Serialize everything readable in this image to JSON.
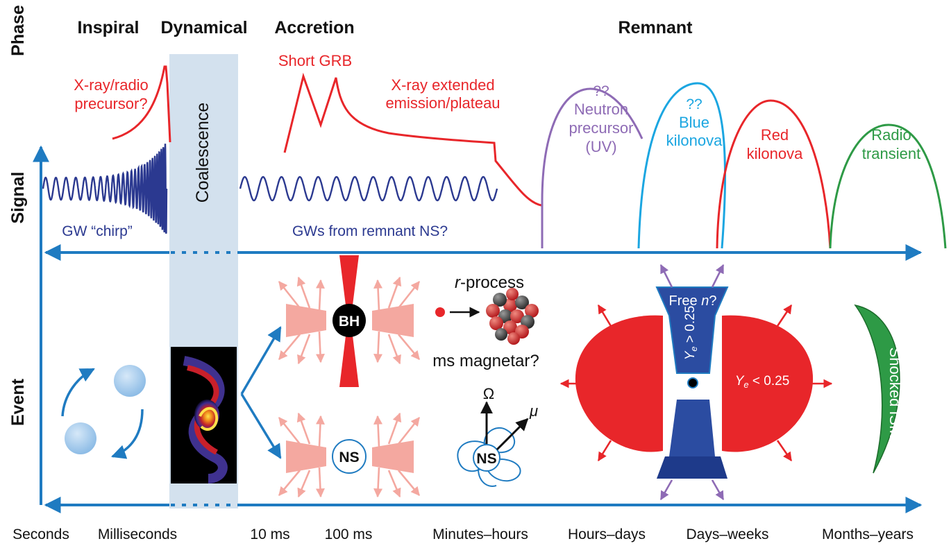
{
  "colors": {
    "axis_blue": "#1f7bc1",
    "gw_navy": "#2b3990",
    "em_red": "#e8262a",
    "purple": "#8e6bb5",
    "cyan": "#1ba6e1",
    "green": "#2e9a46",
    "coalescence_band": "#d3e1ee",
    "pink": "#f4a8a0",
    "ejecta_blue": "#2b4ca1"
  },
  "row_labels": {
    "phase": "Phase",
    "signal": "Signal",
    "event": "Event"
  },
  "phases": {
    "inspiral": "Inspiral",
    "dynamical": "Dynamical",
    "accretion": "Accretion",
    "remnant": "Remnant"
  },
  "signal": {
    "precursor_line1": "X-ray/radio",
    "precursor_line2": "precursor?",
    "coalescence": "Coalescence",
    "short_grb": "Short GRB",
    "extended_line1": "X-ray extended",
    "extended_line2": "emission/plateau",
    "chirp": "GW “chirp”",
    "gw_remnant": "GWs from remnant NS?",
    "neutron_q": "??",
    "neutron_line1": "Neutron",
    "neutron_line2": "precursor",
    "neutron_line3": "(UV)",
    "blue_q": "??",
    "blue_line1": "Blue",
    "blue_line2": "kilonova",
    "red_line1": "Red",
    "red_line2": "kilonova",
    "radio_line1": "Radio",
    "radio_line2": "transient"
  },
  "event": {
    "bh_label": "BH",
    "ns_label": "NS",
    "r_process_r": "r",
    "r_process_rest": "-process",
    "magnetar": "ms magnetar?",
    "magnetar_ns": "NS",
    "omega": "Ω",
    "mu": "μ",
    "free_n": "Free ",
    "free_n_italic": "n",
    "free_n_end": "?",
    "ye_high": "Y",
    "ye_high_sub": "e",
    "ye_high_rest": " > 0.25",
    "ye_low": "Y",
    "ye_low_sub": "e",
    "ye_low_rest": " < 0.25",
    "shocked_ism": "Shocked ISM"
  },
  "time_axis": [
    "Seconds",
    "Milliseconds",
    "10 ms",
    "100 ms",
    "Minutes–hours",
    "Hours–days",
    "Days–weeks",
    "Months–years"
  ]
}
